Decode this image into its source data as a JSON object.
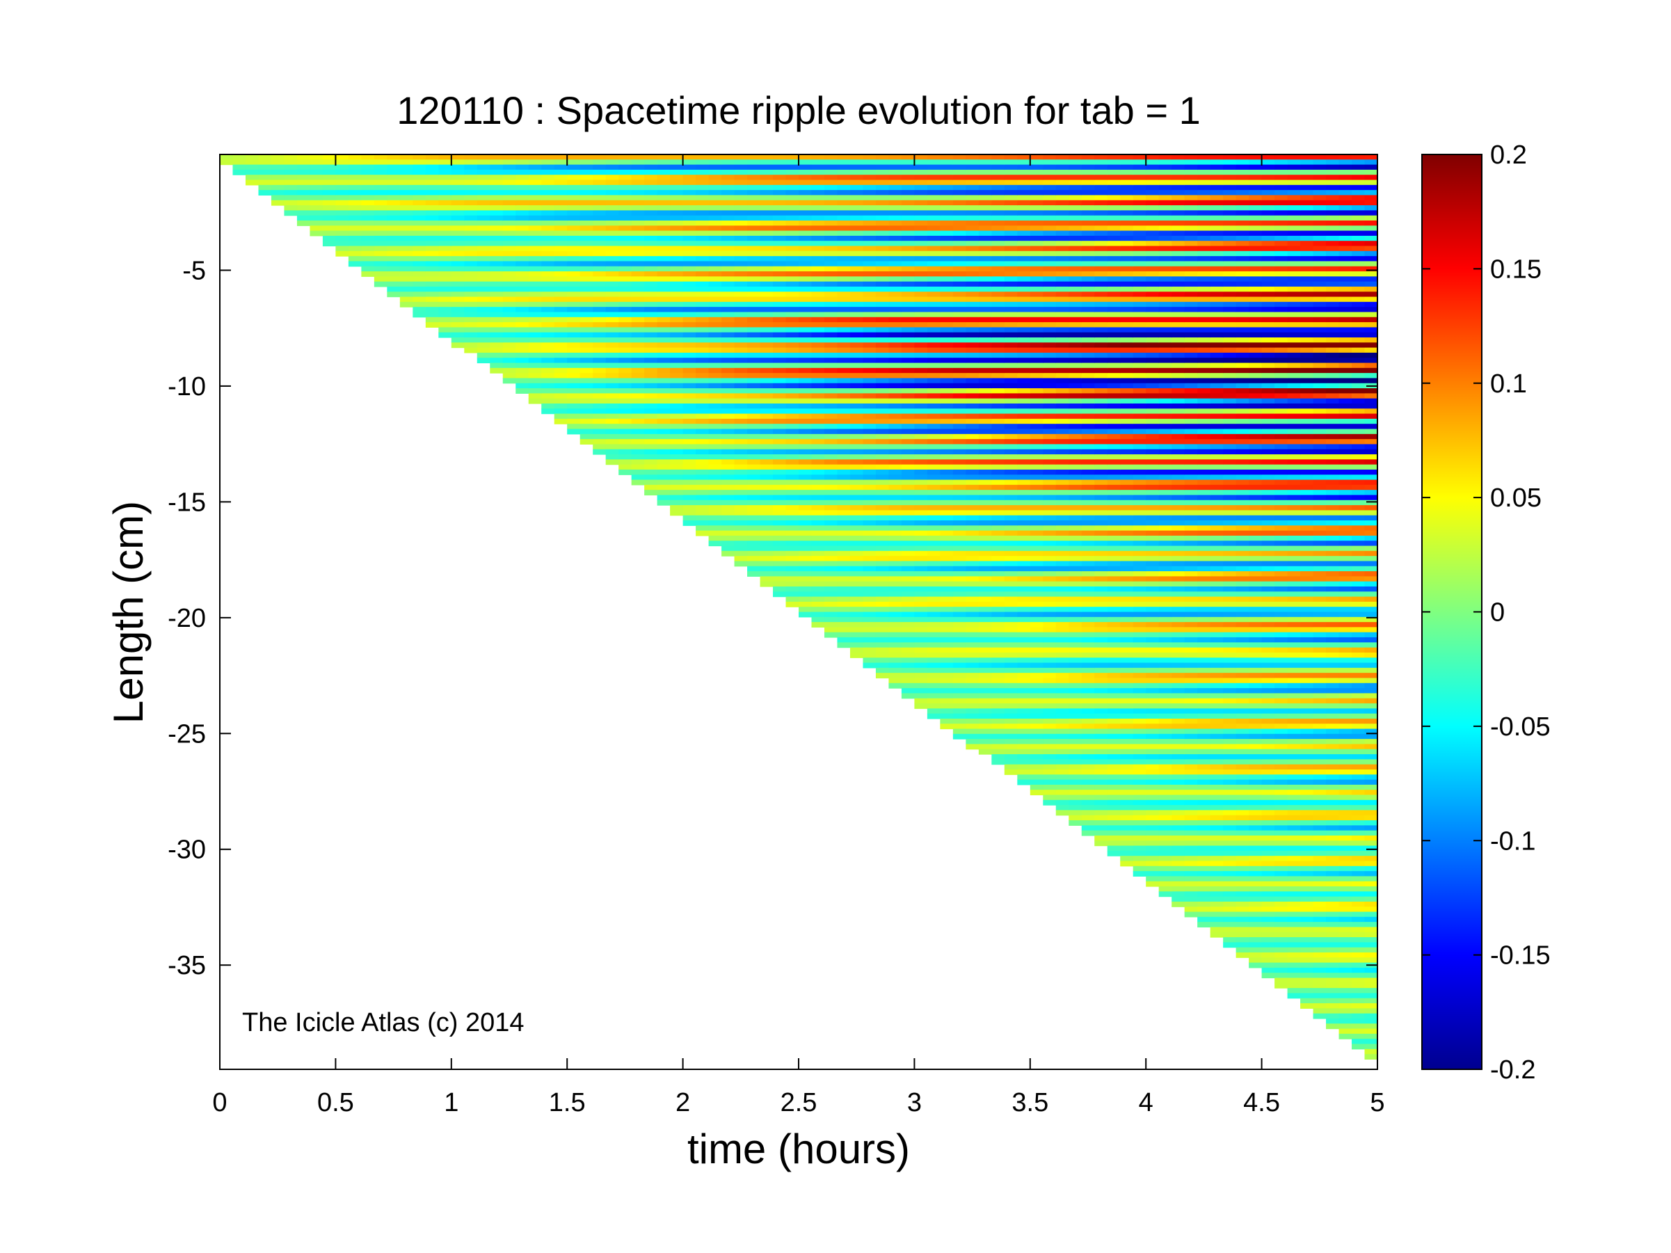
{
  "chart_data": {
    "type": "heatmap",
    "title": "120110 : Spacetime ripple evolution for tab = 1",
    "xlabel": "time (hours)",
    "ylabel": "Length (cm)",
    "xlim": [
      0,
      5
    ],
    "ylim": [
      -39.5,
      0
    ],
    "x_ticks": [
      "0",
      "0.5",
      "1",
      "1.5",
      "2",
      "2.5",
      "3",
      "3.5",
      "4",
      "4.5",
      "5"
    ],
    "x_tick_values": [
      0,
      0.5,
      1,
      1.5,
      2,
      2.5,
      3,
      3.5,
      4,
      4.5,
      5
    ],
    "y_ticks": [
      "-5",
      "-10",
      "-15",
      "-20",
      "-25",
      "-30",
      "-35"
    ],
    "y_tick_values": [
      -5,
      -10,
      -15,
      -20,
      -25,
      -30,
      -35
    ],
    "colorbar": {
      "colormap": "jet",
      "min": -0.2,
      "max": 0.2,
      "ticks": [
        "0.2",
        "0.15",
        "0.1",
        "0.05",
        "0",
        "-0.05",
        "-0.1",
        "-0.15",
        "-0.2"
      ],
      "tick_values": [
        0.2,
        0.15,
        0.1,
        0.05,
        0,
        -0.05,
        -0.1,
        -0.15,
        -0.2
      ]
    },
    "growth_front": {
      "description_points": [
        [
          0,
          0
        ],
        [
          5,
          -39
        ]
      ]
    },
    "grid": false,
    "annotation": "The Icicle Atlas (c) 2014"
  }
}
